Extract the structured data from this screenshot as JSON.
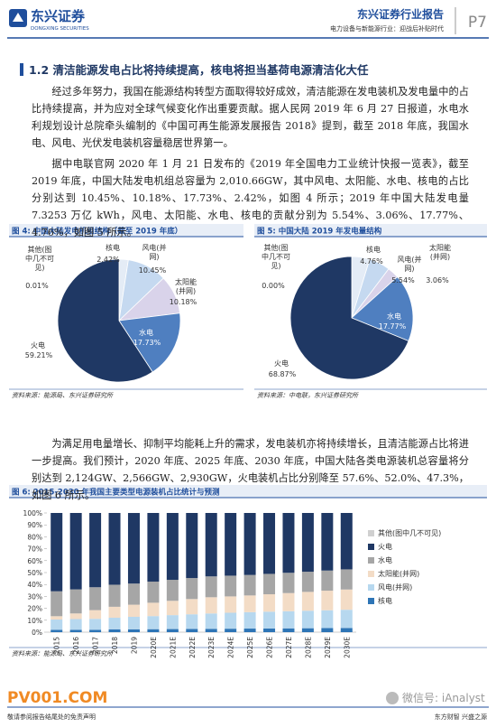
{
  "header": {
    "logo": "东兴证券",
    "logo_en": "DONGXING SECURITIES",
    "title": "东兴证券行业报告",
    "subtitle": "电力设备与新能源行业：迎战后补贴时代",
    "page": "P7"
  },
  "section_title": "1.2 清洁能源发电占比将持续提高，核电将担当基荷电源清洁化大任",
  "paragraphs": [
    "经过多年努力，我国在能源结构转型方面取得较好成效，清洁能源在发电装机及发电量中的占比持续提高，并为应对全球气候变化作出重要贡献。据人民网 2019 年 6 月 27 日报道，水电水利规划设计总院牵头编制的《中国可再生能源发展报告 2018》提到，截至 2018 年底，我国水电、风电、光伏发电装机容量稳居世界第一。",
    "据中电联官网 2020 年 1 月 21 日发布的《2019 年全国电力工业统计快报一览表》，截至 2019 年底，中国大陆发电机组总容量为 2,010.66GW，其中风电、太阳能、水电、核电的占比分别达到 10.45%、10.18%、17.73%、2.42%，如图 4 所示；2019 年中国大陆发电量 7.3253 万亿 kWh，风电、太阳能、水电、核电的贡献分别为 5.54%、3.06%、17.77%、4.76%，如图 5 所示。",
    "为满足用电量增长、抑制平均能耗上升的需求，发电装机亦将持续增长，且清洁能源占比将进一步提高。我们预计，2020 年底、2025 年底、2030 年底，中国大陆各类电源装机总容量将分别达到 2,124GW、2,566GW、2,930GW，火电装机占比分别降至 57.6%、52.0%、47.3%，如图 6 所示。"
  ],
  "chart_data": [
    {
      "type": "pie",
      "title": "图 4: 中国大陆发电机组结构（截至 2019 年底）",
      "source": "资料来源：能源局、东兴证券研究所",
      "categories": [
        "其他(图中几不可见)",
        "核电",
        "风电(并网)",
        "太阳能(并网)",
        "水电",
        "火电"
      ],
      "values": [
        0.01,
        2.42,
        10.45,
        10.18,
        17.73,
        59.21
      ],
      "value_labels": [
        "0.01%",
        "2.42%",
        "10.45%",
        "10.18%",
        "17.73%",
        "59.21%"
      ],
      "colors": [
        "#bfbfbf",
        "#e4ecf6",
        "#c5d9f0",
        "#d9d3ea",
        "#4f7fc0",
        "#1f3864"
      ]
    },
    {
      "type": "pie",
      "title": "图 5: 中国大陆 2019 年发电量结构",
      "source": "资料来源：中电联，东兴证券研究所",
      "categories": [
        "其他(图中几不可见)",
        "核电",
        "风电(并网)",
        "太阳能(并网)",
        "水电",
        "火电"
      ],
      "values": [
        0.0,
        4.76,
        5.54,
        3.06,
        17.77,
        68.87
      ],
      "value_labels": [
        "0.00%",
        "4.76%",
        "5.54%",
        "3.06%",
        "17.77%",
        "68.87%"
      ],
      "colors": [
        "#bfbfbf",
        "#e4ecf6",
        "#c5d9f0",
        "#d9d3ea",
        "#4f7fc0",
        "#1f3864"
      ]
    },
    {
      "type": "bar",
      "stacked": true,
      "title": "图 6: 2015-2030 年我国主要类型电源装机占比统计与预测",
      "source": "资料来源：能源局、东兴证券研究所",
      "categories": [
        "2015",
        "2016",
        "2017",
        "2018",
        "2019",
        "2020E",
        "2021E",
        "2022E",
        "2023E",
        "2024E",
        "2025E",
        "2026E",
        "2027E",
        "2028E",
        "2029E",
        "2030E"
      ],
      "series": [
        {
          "name": "其他(图中几不可见)",
          "color": "#d0d0d0",
          "values": [
            0,
            0,
            0,
            0,
            0.01,
            0,
            0,
            0,
            0,
            0,
            0,
            0,
            0,
            0,
            0,
            0
          ]
        },
        {
          "name": "火电",
          "color": "#1f3864",
          "values": [
            65.7,
            64.1,
            62.3,
            60.2,
            59.21,
            57.6,
            56.1,
            54.6,
            53.2,
            52.6,
            52.0,
            51.1,
            50.2,
            49.3,
            48.3,
            47.3
          ]
        },
        {
          "name": "水电",
          "color": "#a6a6a6",
          "values": [
            20.9,
            20.2,
            19.2,
            18.5,
            17.73,
            17.7,
            17.6,
            17.6,
            17.5,
            17.4,
            17.2,
            17.1,
            17.0,
            16.9,
            16.9,
            16.9
          ]
        },
        {
          "name": "太阳能(并网)",
          "color": "#f3dcc6",
          "values": [
            2.8,
            4.7,
            7.3,
            9.2,
            10.18,
            11.2,
            12.0,
            12.8,
            13.6,
            13.7,
            14.0,
            14.6,
            15.2,
            15.8,
            16.4,
            17.0
          ]
        },
        {
          "name": "风电(并网)",
          "color": "#b7d8ef",
          "values": [
            8.6,
            9.0,
            9.2,
            9.7,
            10.45,
            11.0,
            11.7,
            12.3,
            12.9,
            13.4,
            13.8,
            14.1,
            14.4,
            14.7,
            15.0,
            15.3
          ]
        },
        {
          "name": "核电",
          "color": "#2e75b6",
          "values": [
            2.0,
            2.0,
            2.0,
            2.4,
            2.42,
            2.5,
            2.6,
            2.7,
            2.8,
            2.9,
            3.0,
            3.1,
            3.2,
            3.3,
            3.4,
            3.5
          ]
        }
      ],
      "ylim": [
        0,
        100
      ],
      "yticks": [
        {
          "value": 0,
          "label": "0%"
        },
        {
          "value": 10,
          "label": "10%"
        },
        {
          "value": 20,
          "label": "20%"
        },
        {
          "value": 30,
          "label": "30%"
        },
        {
          "value": 40,
          "label": "40%"
        },
        {
          "value": 50,
          "label": "50%"
        },
        {
          "value": 60,
          "label": "60%"
        },
        {
          "value": 70,
          "label": "70%"
        },
        {
          "value": 80,
          "label": "80%"
        },
        {
          "value": 90,
          "label": "90%"
        },
        {
          "value": 100,
          "label": "100%"
        }
      ],
      "legend": "right"
    }
  ],
  "footer": {
    "brand": "PV001.COM",
    "disclaimer": "敬请参阅报告结尾处的免责声明",
    "slogan": "东方财智 兴盛之源",
    "watermark": "微信号: iAnalyst"
  }
}
